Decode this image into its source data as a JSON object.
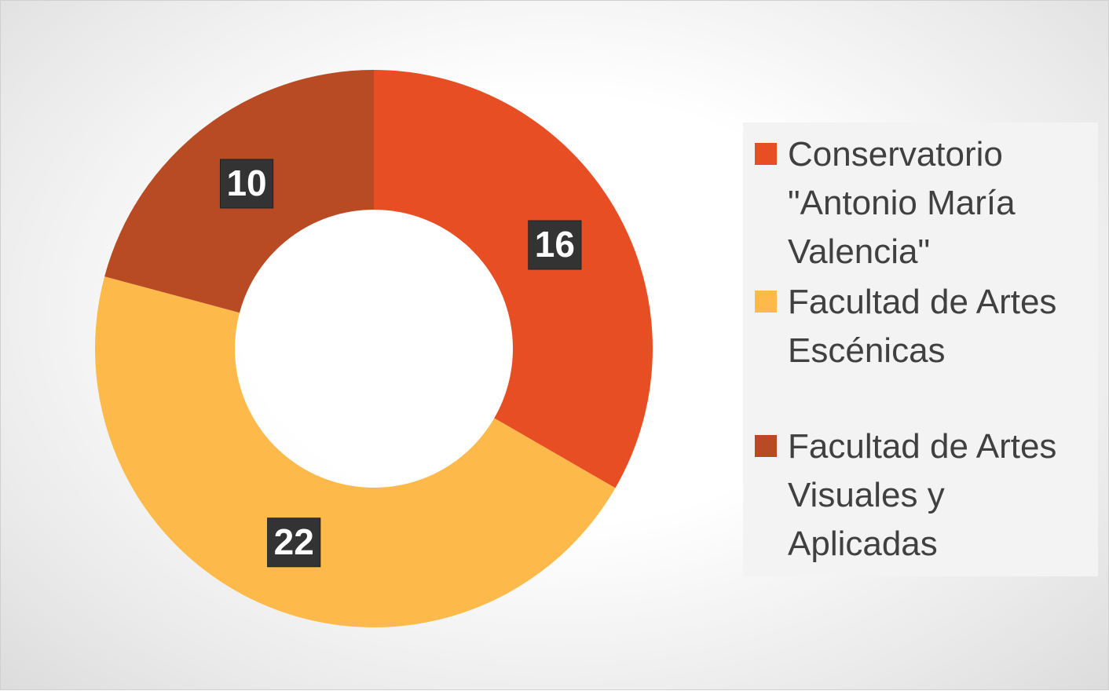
{
  "chart_data": {
    "type": "donut",
    "categories": [
      "Conservatorio \"Antonio María Valencia\"",
      "Facultad de Artes Escénicas",
      "Facultad de Artes Visuales y Aplicadas"
    ],
    "values": [
      16,
      22,
      10
    ],
    "colors": [
      "#E84E23",
      "#FDB94A",
      "#B84A24"
    ],
    "legend": "right"
  }
}
